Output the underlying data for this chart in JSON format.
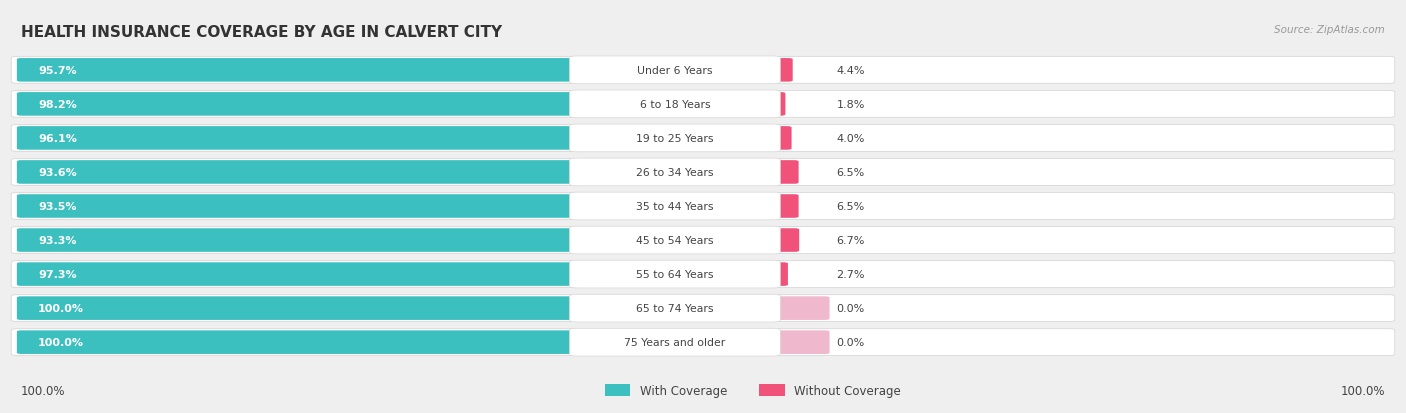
{
  "title": "HEALTH INSURANCE COVERAGE BY AGE IN CALVERT CITY",
  "source": "Source: ZipAtlas.com",
  "categories": [
    "Under 6 Years",
    "6 to 18 Years",
    "19 to 25 Years",
    "26 to 34 Years",
    "35 to 44 Years",
    "45 to 54 Years",
    "55 to 64 Years",
    "65 to 74 Years",
    "75 Years and older"
  ],
  "with_coverage": [
    95.7,
    98.2,
    96.1,
    93.6,
    93.5,
    93.3,
    97.3,
    100.0,
    100.0
  ],
  "without_coverage": [
    4.4,
    1.8,
    4.0,
    6.5,
    6.5,
    6.7,
    2.7,
    0.0,
    0.0
  ],
  "color_with": "#3bbfbf",
  "color_without_strong": "#f0527a",
  "color_without_light": "#f0b8cc",
  "background_color": "#efefef",
  "row_bg_color": "#ffffff",
  "row_border_color": "#d8d8d8",
  "title_color": "#333333",
  "label_color": "#444444",
  "pct_label_color_white": "#ffffff",
  "source_color": "#999999",
  "legend_with_color": "#3bbfbf",
  "legend_without_color": "#f0527a",
  "bottom_axis_label": "100.0%",
  "bottom_right_label": "100.0%"
}
